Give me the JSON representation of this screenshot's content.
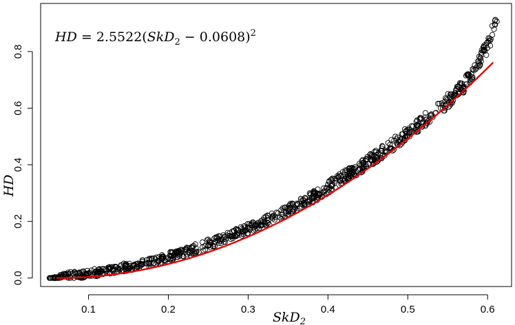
{
  "chart_data": {
    "type": "scatter",
    "title": "",
    "annotation": {
      "lhs": "HD",
      "equals": " = ",
      "coef": "2.5522",
      "open": "(",
      "var": "SkD",
      "sub": "2",
      "minus": " − ",
      "shift": "0.0608",
      "close": ")",
      "power": "2"
    },
    "xlabel": {
      "main": "SkD",
      "sub": "2"
    },
    "ylabel": "HD",
    "xlim": [
      0.04,
      0.63
    ],
    "ylim": [
      -0.03,
      0.97
    ],
    "x_ticks": [
      "0.1",
      "0.2",
      "0.3",
      "0.4",
      "0.5",
      "0.6"
    ],
    "y_ticks": [
      "0.0",
      "0.2",
      "0.4",
      "0.6",
      "0.8"
    ],
    "x_tick_values": [
      0.1,
      0.2,
      0.3,
      0.4,
      0.5,
      0.6
    ],
    "y_tick_values": [
      0.0,
      0.2,
      0.4,
      0.6,
      0.8
    ],
    "series": [
      {
        "kind": "points",
        "marker": "open-circle",
        "color": "#000000",
        "x": [
          0.05,
          0.06,
          0.07,
          0.08,
          0.09,
          0.1,
          0.11,
          0.12,
          0.13,
          0.14,
          0.15,
          0.16,
          0.17,
          0.18,
          0.19,
          0.2,
          0.21,
          0.22,
          0.23,
          0.24,
          0.25,
          0.26,
          0.27,
          0.28,
          0.29,
          0.3,
          0.31,
          0.32,
          0.33,
          0.34,
          0.35,
          0.36,
          0.37,
          0.38,
          0.39,
          0.4,
          0.41,
          0.42,
          0.43,
          0.44,
          0.45,
          0.46,
          0.47,
          0.48,
          0.49,
          0.5,
          0.51,
          0.52,
          0.53,
          0.54,
          0.55,
          0.56,
          0.57,
          0.58,
          0.59,
          0.6,
          0.605,
          0.61,
          0.612
        ],
        "y": [
          0.0,
          0.0,
          0.005,
          0.01,
          0.012,
          0.015,
          0.02,
          0.025,
          0.03,
          0.035,
          0.04,
          0.045,
          0.05,
          0.06,
          0.065,
          0.075,
          0.08,
          0.09,
          0.1,
          0.11,
          0.12,
          0.13,
          0.14,
          0.15,
          0.165,
          0.175,
          0.19,
          0.2,
          0.21,
          0.225,
          0.24,
          0.255,
          0.27,
          0.285,
          0.3,
          0.32,
          0.34,
          0.36,
          0.375,
          0.39,
          0.41,
          0.43,
          0.45,
          0.47,
          0.49,
          0.51,
          0.53,
          0.555,
          0.58,
          0.6,
          0.625,
          0.65,
          0.68,
          0.72,
          0.77,
          0.82,
          0.86,
          0.9,
          0.93
        ],
        "scatter_spread": 0.018
      },
      {
        "kind": "fit-line",
        "color": "#e60000",
        "coef": 2.5522,
        "shift": 0.0608,
        "x_range": [
          0.06,
          0.607
        ]
      }
    ],
    "grid": false,
    "legend": "none"
  }
}
